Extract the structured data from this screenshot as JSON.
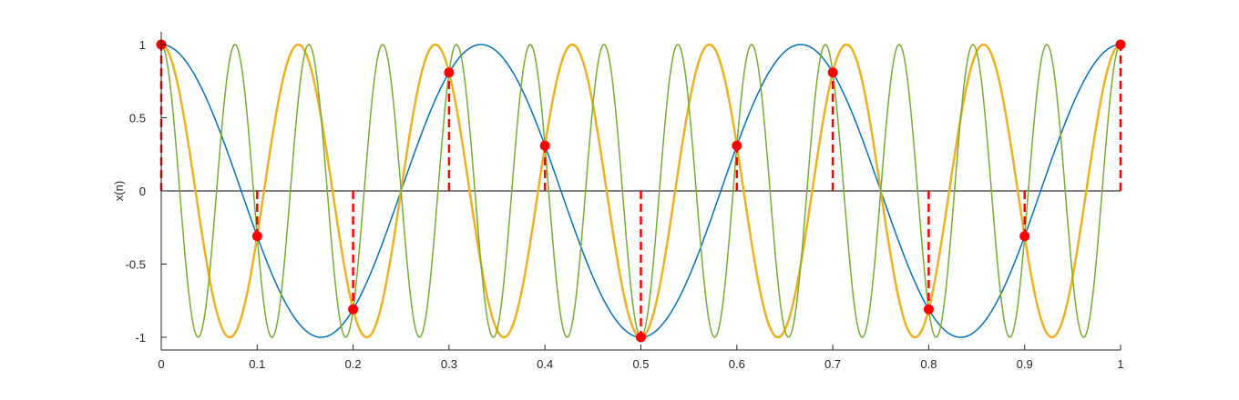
{
  "chart_data": {
    "type": "line",
    "title": "",
    "xlabel": "",
    "ylabel": "x(n)",
    "xlim": [
      0,
      1
    ],
    "ylim": [
      -1,
      1
    ],
    "grid": false,
    "x_ticks": [
      "0",
      "0.1",
      "0.2",
      "0.3",
      "0.4",
      "0.5",
      "0.6",
      "0.7",
      "0.8",
      "0.9",
      "1"
    ],
    "y_ticks": [
      "-1",
      "-0.5",
      "0",
      "0.5",
      "1"
    ],
    "series": [
      {
        "kind": "continuous",
        "function": "cos(2*pi*f*t)",
        "frequency": 3,
        "color": "#0072BD",
        "line_width": 1.5
      },
      {
        "kind": "continuous",
        "function": "cos(2*pi*f*t)",
        "frequency": 7,
        "color": "#EDB120",
        "line_width": 2.5
      },
      {
        "kind": "continuous",
        "function": "cos(2*pi*f*t)",
        "frequency": 13,
        "color": "#77AC30",
        "line_width": 1.5
      },
      {
        "kind": "samples",
        "style": "stem",
        "color": "#FF0000",
        "line_style": "dashed",
        "x": [
          0,
          0.1,
          0.2,
          0.3,
          0.4,
          0.5,
          0.6,
          0.7,
          0.8,
          0.9,
          1.0
        ],
        "y": [
          1,
          -0.309,
          -0.809,
          0.809,
          0.309,
          -1,
          0.309,
          0.809,
          -0.809,
          -0.309,
          1
        ]
      }
    ]
  }
}
